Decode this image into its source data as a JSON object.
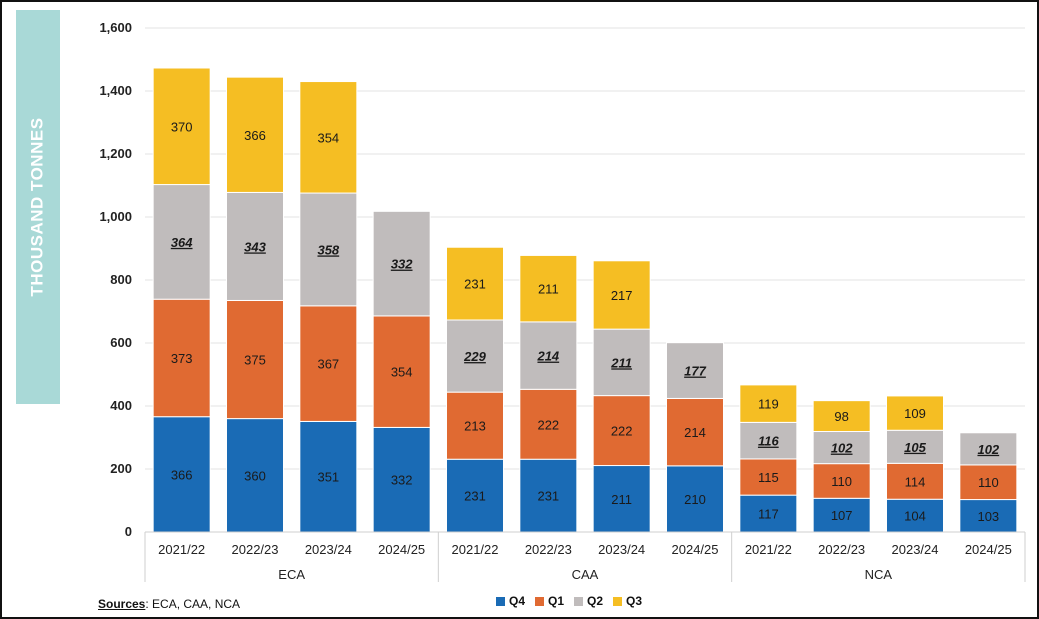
{
  "y_axis_title": "THOUSAND TONNES",
  "sources": {
    "label": "Sources",
    "text": ": ECA, CAA, NCA"
  },
  "colors": {
    "Q4": "#1a6bb5",
    "Q1": "#e06a32",
    "Q2": "#c0bcbc",
    "Q3": "#f5be23"
  },
  "chart_data": {
    "type": "bar",
    "stacked": true,
    "ylabel": "THOUSAND TONNES",
    "ylim": [
      0,
      1600
    ],
    "yticks": [
      "0",
      "200",
      "400",
      "600",
      "800",
      "1,000",
      "1,200",
      "1,400",
      "1,600"
    ],
    "grid": true,
    "legend_position": "bottom",
    "groups": [
      "ECA",
      "CAA",
      "NCA"
    ],
    "categories": [
      "2021/22",
      "2022/23",
      "2023/24",
      "2024/25",
      "2021/22",
      "2022/23",
      "2023/24",
      "2024/25",
      "2021/22",
      "2022/23",
      "2023/24",
      "2024/25"
    ],
    "series": [
      {
        "name": "Q4",
        "values": [
          366,
          360,
          351,
          332,
          231,
          231,
          211,
          210,
          117,
          107,
          104,
          103
        ]
      },
      {
        "name": "Q1",
        "values": [
          373,
          375,
          367,
          354,
          213,
          222,
          222,
          214,
          115,
          110,
          114,
          110
        ]
      },
      {
        "name": "Q2",
        "values": [
          364,
          343,
          358,
          332,
          229,
          214,
          211,
          177,
          116,
          102,
          105,
          102
        ]
      },
      {
        "name": "Q3",
        "values": [
          370,
          366,
          354,
          null,
          231,
          211,
          217,
          null,
          119,
          98,
          109,
          null
        ]
      }
    ]
  }
}
